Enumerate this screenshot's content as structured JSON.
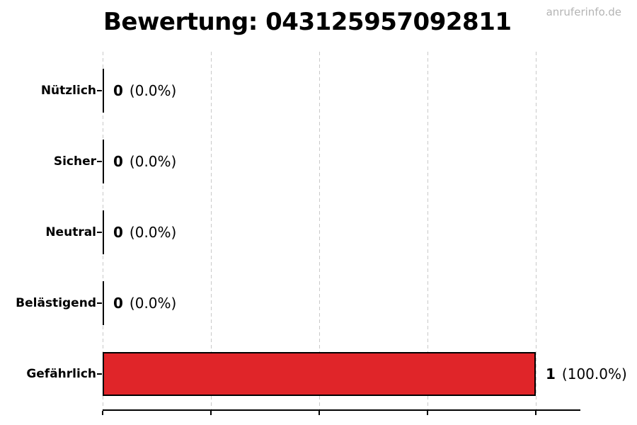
{
  "title": "Bewertung: 043125957092811",
  "watermark": "anruferinfo.de",
  "chart_data": {
    "type": "bar",
    "orientation": "horizontal",
    "title": "Bewertung: 043125957092811",
    "categories": [
      "Nützlich",
      "Sicher",
      "Neutral",
      "Belästigend",
      "Gefährlich"
    ],
    "values": [
      0,
      0,
      0,
      0,
      1
    ],
    "percentages": [
      0.0,
      0.0,
      0.0,
      0.0,
      100.0
    ],
    "rows": [
      {
        "label": "Nützlich",
        "count": "0",
        "percent": "(0.0%)"
      },
      {
        "label": "Sicher",
        "count": "0",
        "percent": "(0.0%)"
      },
      {
        "label": "Neutral",
        "count": "0",
        "percent": "(0.0%)"
      },
      {
        "label": "Belästigend",
        "count": "0",
        "percent": "(0.0%)"
      },
      {
        "label": "Gefährlich",
        "count": "1",
        "percent": "(100.0%)"
      }
    ],
    "xlim": [
      0,
      1.1
    ],
    "x_ticks": [
      0,
      0.25,
      0.5,
      0.75,
      1.0
    ],
    "x_tick_labels_visible": false,
    "grid": "vertical-dashed",
    "legend": "none",
    "bar_edge_color": "#000000",
    "highlight_color": "#e02529"
  },
  "colors": {
    "background": "#ffffff",
    "bar_red": "#e02529",
    "bar_edge": "#000000",
    "grid": "#c9c9c9",
    "watermark": "#b4b4b4",
    "text": "#000000"
  }
}
